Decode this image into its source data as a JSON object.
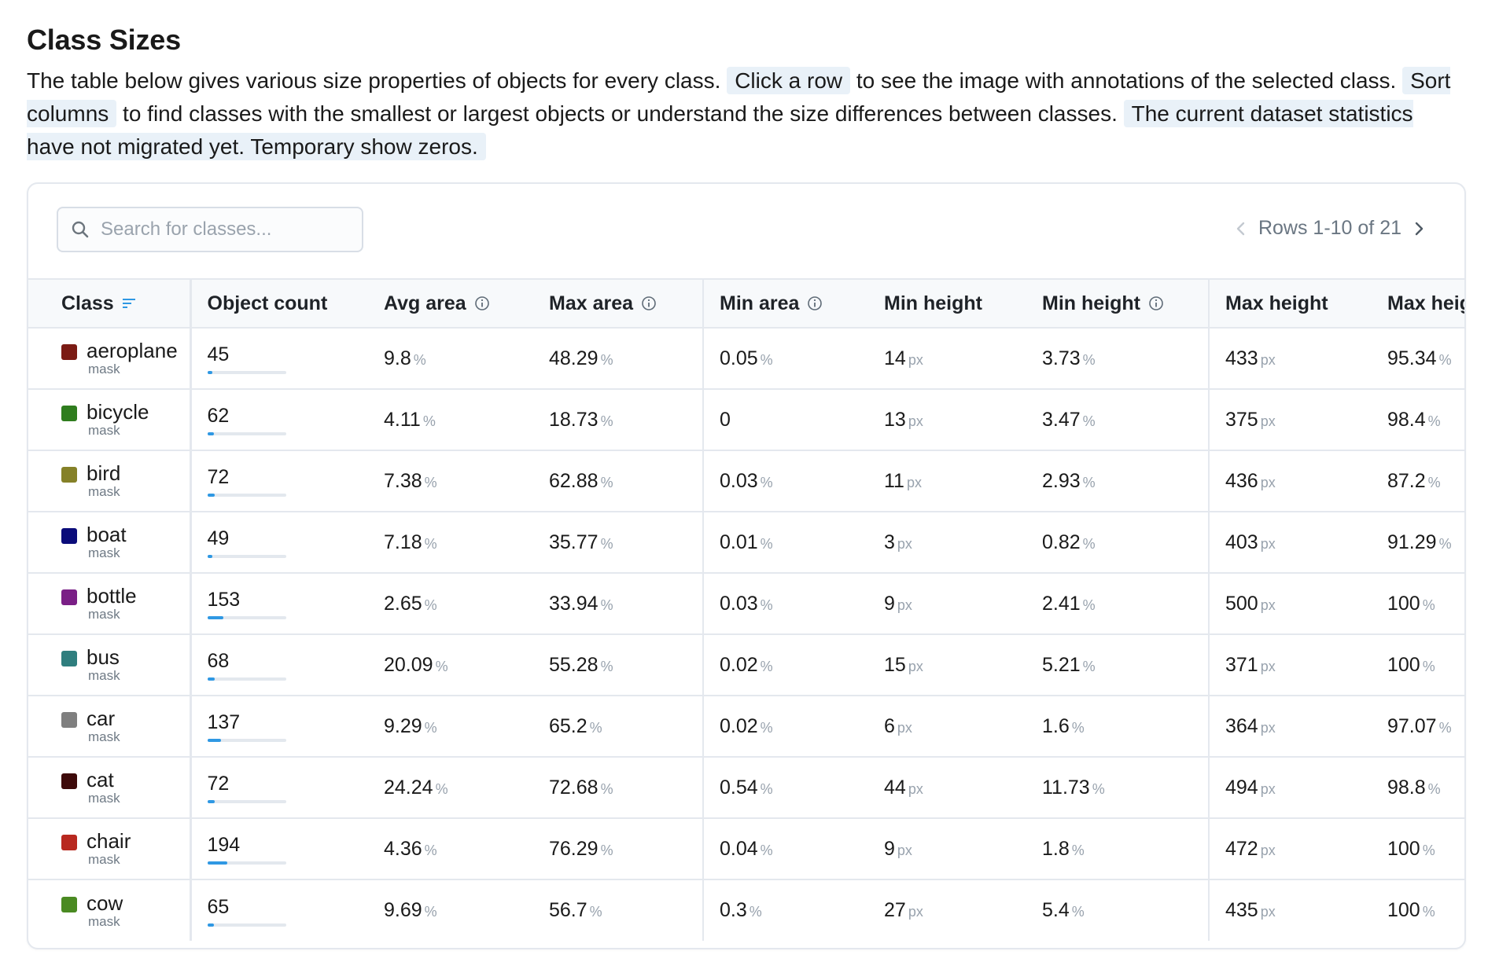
{
  "title": "Class Sizes",
  "description": {
    "part1": "The table below gives various size properties of objects for every class. ",
    "hl1": "Click a row",
    "part2": " to see the image with annotations of the selected class. ",
    "hl2": "Sort columns",
    "part3": " to find classes with the smallest or largest objects or understand the size differences between classes. ",
    "hl3": "The current dataset statistics have not migrated yet. Temporary show zeros."
  },
  "search": {
    "placeholder": "Search for classes..."
  },
  "pager": {
    "label": "Rows 1-10 of 21"
  },
  "icons": {
    "search": "search-icon",
    "sort": "sort-icon",
    "info": "info-icon",
    "prev": "chevron-left-icon",
    "next": "chevron-right-icon"
  },
  "colors": {
    "accent": "#2f98e3",
    "highlight": "#e9f1f8",
    "border": "#e4e8ee"
  },
  "columns": {
    "class": "Class",
    "object_count": "Object count",
    "avg_area": "Avg area",
    "max_area": "Max area",
    "min_area": "Min area",
    "min_height_px": "Min height",
    "min_height_pct": "Min height",
    "max_height_px": "Max height",
    "max_height_pct": "Max height"
  },
  "units": {
    "pct": "%",
    "px": "px"
  },
  "rows": [
    {
      "name": "aeroplane",
      "type": "mask",
      "color": "#7b1b14",
      "count": "45",
      "count_fraction": 0.06,
      "avg_area": "9.8",
      "max_area": "48.29",
      "min_area": "0.05",
      "min_area_unit": "%",
      "min_h_px": "14",
      "min_h_pct": "3.73",
      "max_h_px": "433",
      "max_h_pct": "95.34"
    },
    {
      "name": "bicycle",
      "type": "mask",
      "color": "#2f7d1e",
      "count": "62",
      "count_fraction": 0.08,
      "avg_area": "4.11",
      "max_area": "18.73",
      "min_area": "0",
      "min_area_unit": "",
      "min_h_px": "13",
      "min_h_pct": "3.47",
      "max_h_px": "375",
      "max_h_pct": "98.4"
    },
    {
      "name": "bird",
      "type": "mask",
      "color": "#858128",
      "count": "72",
      "count_fraction": 0.09,
      "avg_area": "7.38",
      "max_area": "62.88",
      "min_area": "0.03",
      "min_area_unit": "%",
      "min_h_px": "11",
      "min_h_pct": "2.93",
      "max_h_px": "436",
      "max_h_pct": "87.2"
    },
    {
      "name": "boat",
      "type": "mask",
      "color": "#0b0c7a",
      "count": "49",
      "count_fraction": 0.06,
      "avg_area": "7.18",
      "max_area": "35.77",
      "min_area": "0.01",
      "min_area_unit": "%",
      "min_h_px": "3",
      "min_h_pct": "0.82",
      "max_h_px": "403",
      "max_h_pct": "91.29"
    },
    {
      "name": "bottle",
      "type": "mask",
      "color": "#7a1f86",
      "count": "153",
      "count_fraction": 0.2,
      "avg_area": "2.65",
      "max_area": "33.94",
      "min_area": "0.03",
      "min_area_unit": "%",
      "min_h_px": "9",
      "min_h_pct": "2.41",
      "max_h_px": "500",
      "max_h_pct": "100"
    },
    {
      "name": "bus",
      "type": "mask",
      "color": "#2f7e7e",
      "count": "68",
      "count_fraction": 0.09,
      "avg_area": "20.09",
      "max_area": "55.28",
      "min_area": "0.02",
      "min_area_unit": "%",
      "min_h_px": "15",
      "min_h_pct": "5.21",
      "max_h_px": "371",
      "max_h_pct": "100"
    },
    {
      "name": "car",
      "type": "mask",
      "color": "#7f7f7f",
      "count": "137",
      "count_fraction": 0.17,
      "avg_area": "9.29",
      "max_area": "65.2",
      "min_area": "0.02",
      "min_area_unit": "%",
      "min_h_px": "6",
      "min_h_pct": "1.6",
      "max_h_px": "364",
      "max_h_pct": "97.07"
    },
    {
      "name": "cat",
      "type": "mask",
      "color": "#3e0a0a",
      "count": "72",
      "count_fraction": 0.09,
      "avg_area": "24.24",
      "max_area": "72.68",
      "min_area": "0.54",
      "min_area_unit": "%",
      "min_h_px": "44",
      "min_h_pct": "11.73",
      "max_h_px": "494",
      "max_h_pct": "98.8"
    },
    {
      "name": "chair",
      "type": "mask",
      "color": "#b8281f",
      "count": "194",
      "count_fraction": 0.25,
      "avg_area": "4.36",
      "max_area": "76.29",
      "min_area": "0.04",
      "min_area_unit": "%",
      "min_h_px": "9",
      "min_h_pct": "1.8",
      "max_h_px": "472",
      "max_h_pct": "100"
    },
    {
      "name": "cow",
      "type": "mask",
      "color": "#4a8a22",
      "count": "65",
      "count_fraction": 0.08,
      "avg_area": "9.69",
      "max_area": "56.7",
      "min_area": "0.3",
      "min_area_unit": "%",
      "min_h_px": "27",
      "min_h_pct": "5.4",
      "max_h_px": "435",
      "max_h_pct": "100"
    }
  ]
}
